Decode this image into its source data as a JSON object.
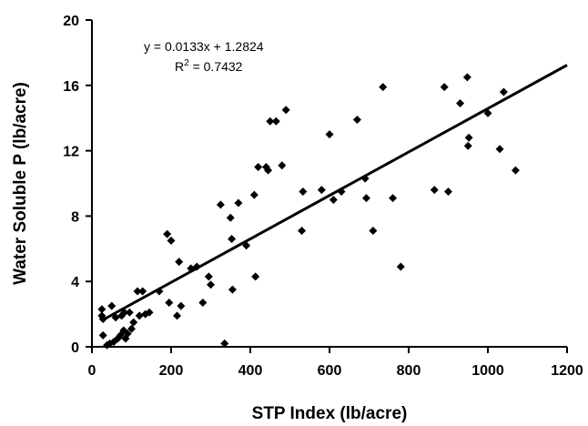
{
  "chart_data": {
    "type": "scatter",
    "title": "",
    "xlabel": "STP Index (lb/acre)",
    "ylabel": "Water Soluble P (lb/acre)",
    "xlim": [
      0,
      1200
    ],
    "ylim": [
      0,
      20
    ],
    "xticks": [
      "0",
      "200",
      "400",
      "600",
      "800",
      "1000",
      "1200"
    ],
    "yticks": [
      "0",
      "4",
      "8",
      "12",
      "16",
      "20"
    ],
    "grid": false,
    "marker": "diamond",
    "marker_color": "#000000",
    "annotation": {
      "equation": "y = 0.0133x + 1.2824",
      "r2_prefix": "R",
      "r2_sup": "2",
      "r2_rest": " = 0.7432"
    },
    "trendline": {
      "slope": 0.0133,
      "intercept": 1.2824,
      "x_range": [
        25,
        1200
      ]
    },
    "series": [
      {
        "points": [
          [
            25,
            2.3
          ],
          [
            25,
            1.9
          ],
          [
            28,
            1.7
          ],
          [
            28,
            0.7
          ],
          [
            38,
            0.1
          ],
          [
            45,
            0.2
          ],
          [
            50,
            2.5
          ],
          [
            55,
            0.3
          ],
          [
            60,
            1.8
          ],
          [
            65,
            0.5
          ],
          [
            72,
            0.7
          ],
          [
            75,
            1.9
          ],
          [
            80,
            1.0
          ],
          [
            82,
            2.1
          ],
          [
            85,
            0.5
          ],
          [
            90,
            0.8
          ],
          [
            95,
            2.1
          ],
          [
            100,
            1.1
          ],
          [
            105,
            1.5
          ],
          [
            115,
            3.4
          ],
          [
            120,
            1.9
          ],
          [
            128,
            3.4
          ],
          [
            135,
            2.0
          ],
          [
            145,
            2.1
          ],
          [
            170,
            3.4
          ],
          [
            190,
            6.9
          ],
          [
            195,
            2.7
          ],
          [
            200,
            6.5
          ],
          [
            215,
            1.9
          ],
          [
            220,
            5.2
          ],
          [
            225,
            2.5
          ],
          [
            250,
            4.8
          ],
          [
            265,
            4.9
          ],
          [
            280,
            2.7
          ],
          [
            295,
            4.3
          ],
          [
            300,
            3.8
          ],
          [
            325,
            8.7
          ],
          [
            335,
            0.2
          ],
          [
            350,
            7.9
          ],
          [
            353,
            6.6
          ],
          [
            355,
            3.5
          ],
          [
            370,
            8.8
          ],
          [
            390,
            6.2
          ],
          [
            410,
            9.3
          ],
          [
            413,
            4.3
          ],
          [
            420,
            11.0
          ],
          [
            440,
            11.0
          ],
          [
            445,
            10.8
          ],
          [
            450,
            13.8
          ],
          [
            465,
            13.8
          ],
          [
            480,
            11.1
          ],
          [
            490,
            14.5
          ],
          [
            530,
            7.1
          ],
          [
            533,
            9.5
          ],
          [
            580,
            9.6
          ],
          [
            600,
            13.0
          ],
          [
            610,
            9.0
          ],
          [
            630,
            9.5
          ],
          [
            670,
            13.9
          ],
          [
            690,
            10.3
          ],
          [
            693,
            9.1
          ],
          [
            710,
            7.1
          ],
          [
            735,
            15.9
          ],
          [
            760,
            9.1
          ],
          [
            780,
            4.9
          ],
          [
            865,
            9.6
          ],
          [
            890,
            15.9
          ],
          [
            900,
            9.5
          ],
          [
            930,
            14.9
          ],
          [
            948,
            16.5
          ],
          [
            950,
            12.3
          ],
          [
            952,
            12.8
          ],
          [
            1000,
            14.3
          ],
          [
            1030,
            12.1
          ],
          [
            1040,
            15.6
          ],
          [
            1070,
            10.8
          ]
        ]
      }
    ]
  }
}
